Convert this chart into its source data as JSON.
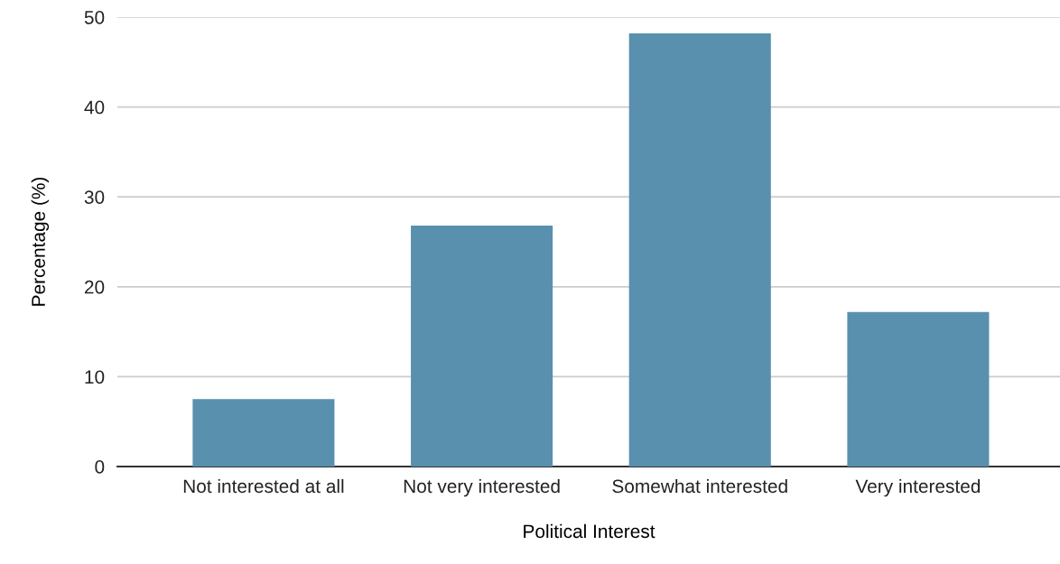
{
  "chart_data": {
    "type": "bar",
    "xlabel": "Political Interest",
    "ylabel": "Percentage (%)",
    "categories": [
      "Not interested at all",
      "Not very interested",
      "Somewhat interested",
      "Very interested"
    ],
    "values": [
      7.5,
      26.8,
      48.2,
      17.2
    ],
    "color": "#5990ae",
    "ylim": [
      0,
      50
    ],
    "yticks": [
      0,
      10,
      20,
      30,
      40,
      50
    ],
    "grid": "y"
  }
}
